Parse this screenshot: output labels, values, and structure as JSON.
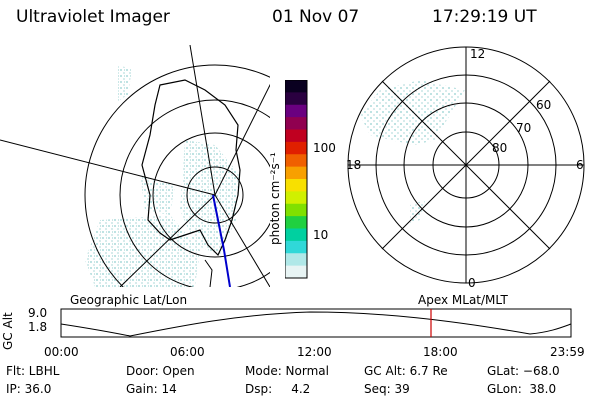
{
  "header": {
    "instrument": "Ultraviolet Imager",
    "date": "01 Nov 07",
    "time": "17:29:19 UT"
  },
  "colors": {
    "speckle": "#bfe3e3",
    "ink": "#000000",
    "track": "#0000cc",
    "marker": "#cc0000"
  },
  "geo_panel": {
    "label": "Geographic Lat/Lon"
  },
  "polar_panel": {
    "label": "Apex MLat/MLT",
    "mlt_labels": {
      "top": "12",
      "left": "18",
      "right": "6",
      "bottom": "0"
    },
    "lat_labels": [
      "60",
      "70",
      "80"
    ]
  },
  "colorbar": {
    "unit_label": "photon cm⁻²s⁻¹",
    "scale": "log",
    "ticks": [
      "100",
      "10"
    ],
    "colors": [
      "#0a0020",
      "#2a0040",
      "#6a0080",
      "#900050",
      "#c00020",
      "#e02000",
      "#f06000",
      "#f8a000",
      "#f8e000",
      "#d0f000",
      "#80e000",
      "#20d040",
      "#00d0a0",
      "#30d8d8",
      "#b0e8e8",
      "#e8f4f4"
    ]
  },
  "altitude_plot": {
    "ylabel": "GC Alt",
    "yticks": [
      "9.0",
      "1.8"
    ],
    "xticks": [
      "00:00",
      "06:00",
      "12:00",
      "18:00",
      "23:59"
    ],
    "marker_time": "17:29"
  },
  "info": {
    "flt": "Flt: LBHL",
    "door": "Door: Open",
    "mode": "Mode: Normal",
    "gc_alt": "GC Alt: 6.7 Re",
    "glat": "GLat: −68.0",
    "ip": "IP: 36.0",
    "gain": "Gain: 14",
    "dsp": "Dsp:     4.2",
    "seq": "Seq: 39",
    "glon": "GLon:  38.0"
  }
}
